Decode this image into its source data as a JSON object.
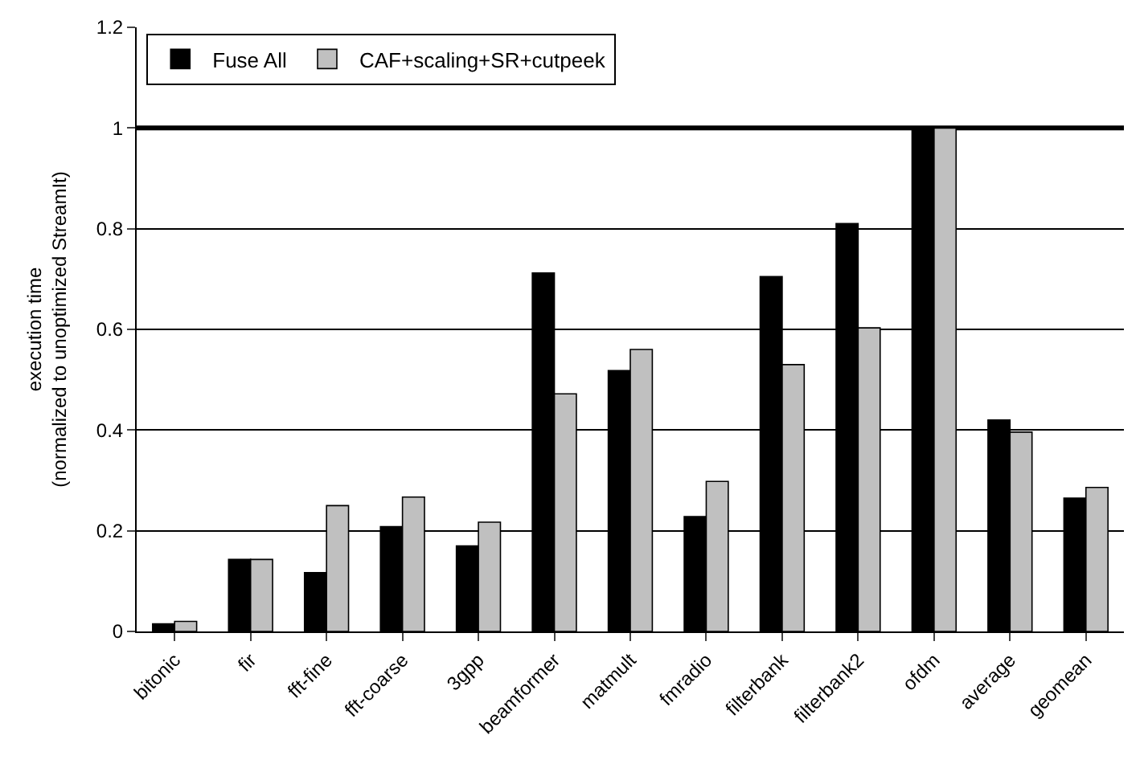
{
  "chart_data": {
    "type": "bar",
    "ylabel": "execution time\n(normalized to unoptimized StreamIt)",
    "categories": [
      "bitonic",
      "fir",
      "fft-fine",
      "fft-coarse",
      "3gpp",
      "beamformer",
      "matmult",
      "fmradio",
      "filterbank",
      "filterbank2",
      "ofdm",
      "average",
      "geomean"
    ],
    "series": [
      {
        "name": "Fuse All",
        "color": "#000000",
        "values": [
          0.015,
          0.143,
          0.117,
          0.208,
          0.17,
          0.712,
          0.518,
          0.228,
          0.705,
          0.81,
          1.0,
          0.42,
          0.265
        ]
      },
      {
        "name": "CAF+scaling+SR+cutpeek",
        "color": "#c0c0c0",
        "values": [
          0.02,
          0.143,
          0.25,
          0.267,
          0.217,
          0.472,
          0.56,
          0.298,
          0.53,
          0.603,
          1.0,
          0.396,
          0.286
        ]
      }
    ],
    "ylim": [
      0,
      1.2
    ],
    "yticks": [
      0,
      0.2,
      0.4,
      0.6,
      0.8,
      1,
      1.2
    ],
    "ref_lines": [
      {
        "axis": "y",
        "value": 1,
        "color": "#000000"
      }
    ],
    "grid": "y",
    "legend": "top left"
  }
}
